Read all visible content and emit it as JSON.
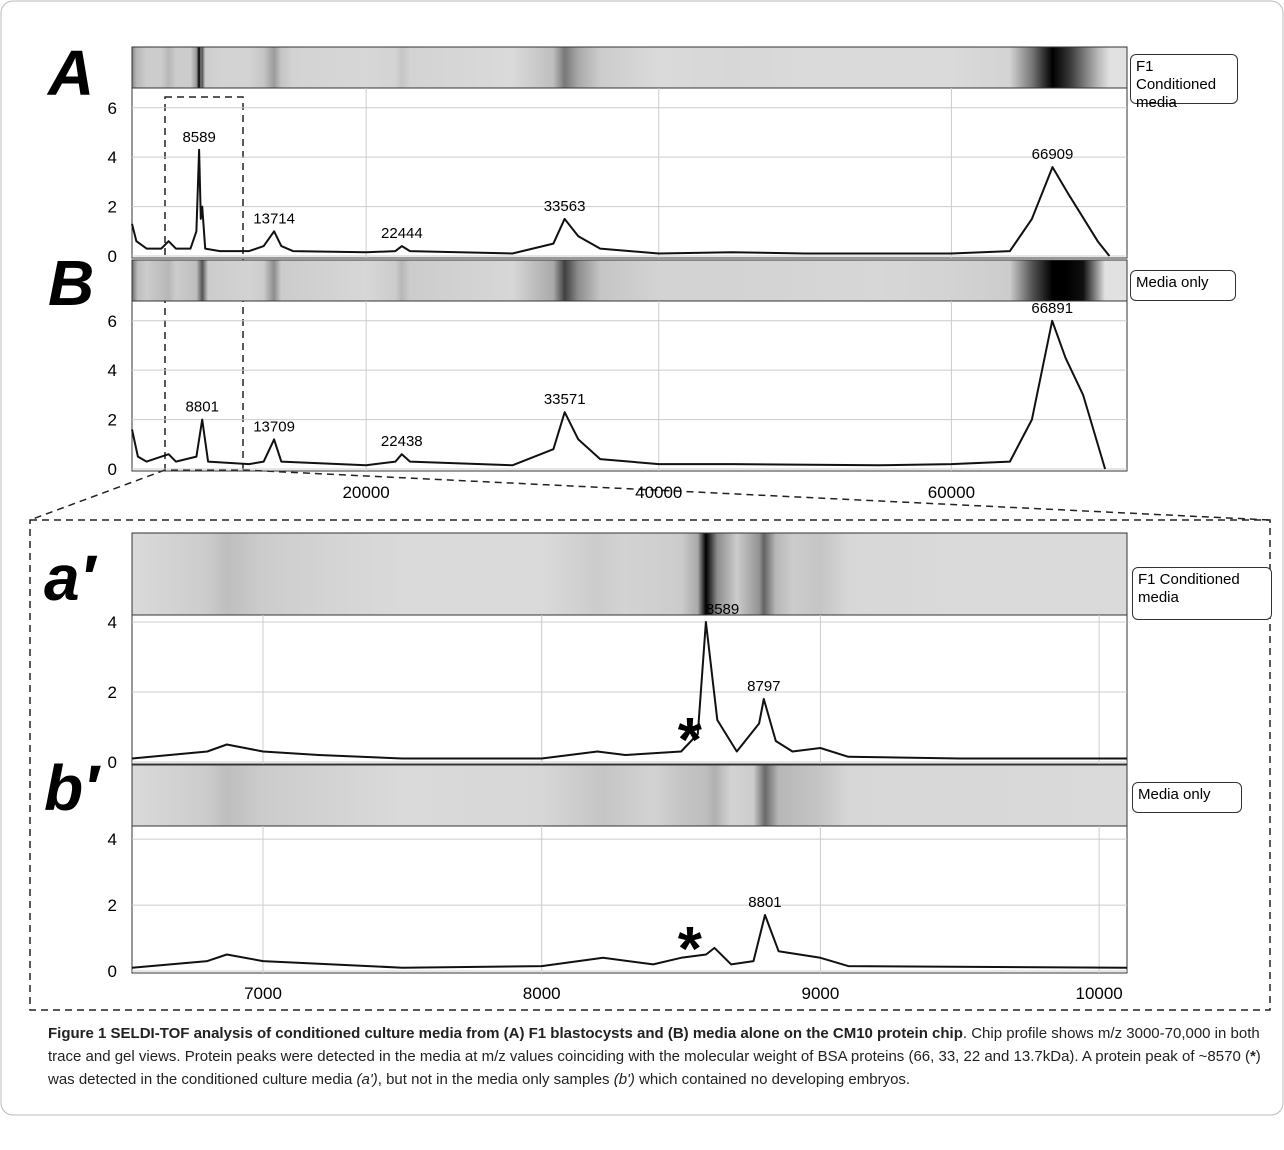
{
  "chart_data": [
    {
      "type": "line",
      "panel": "A",
      "xlim": [
        4000,
        72000
      ],
      "ylim": [
        0,
        6.8
      ],
      "yticks": [
        0,
        2,
        4,
        6
      ],
      "xticks": [
        20000,
        40000,
        60000
      ],
      "show_xtick_labels": false,
      "grid": true,
      "x": [
        4000,
        4300,
        5000,
        6000,
        6500,
        7000,
        8000,
        8400,
        8589,
        8700,
        8800,
        9000,
        10000,
        12000,
        13000,
        13714,
        14200,
        15000,
        20000,
        22000,
        22444,
        23000,
        30000,
        32800,
        33563,
        34500,
        36000,
        40000,
        45000,
        50000,
        60000,
        64000,
        65500,
        66909,
        68000,
        70000,
        70800
      ],
      "series": [
        {
          "name": "F1 Conditioned media",
          "color": "#111111",
          "values": [
            1.3,
            0.6,
            0.3,
            0.3,
            0.6,
            0.3,
            0.3,
            1,
            4.3,
            1.5,
            2,
            0.3,
            0.2,
            0.2,
            0.4,
            1,
            0.4,
            0.2,
            0.15,
            0.2,
            0.4,
            0.2,
            0.1,
            0.5,
            1.5,
            0.8,
            0.3,
            0.1,
            0.15,
            0.1,
            0.1,
            0.2,
            1.5,
            3.6,
            2.5,
            0.6,
            0
          ]
        }
      ],
      "peaks": [
        8589,
        13714,
        22444,
        33563,
        66909
      ]
    },
    {
      "type": "line",
      "panel": "B",
      "xlim": [
        4000,
        72000
      ],
      "ylim": [
        0,
        6.8
      ],
      "yticks": [
        0,
        2,
        4,
        6
      ],
      "xticks": [
        20000,
        40000,
        60000
      ],
      "show_xtick_labels": true,
      "grid": true,
      "x": [
        4000,
        4400,
        5000,
        6500,
        7000,
        8400,
        8801,
        9200,
        12000,
        13000,
        13709,
        14200,
        20000,
        22000,
        22438,
        23000,
        30000,
        32800,
        33571,
        34500,
        36000,
        40000,
        45000,
        55000,
        60000,
        64000,
        65500,
        66891,
        67800,
        69000,
        70500
      ],
      "series": [
        {
          "name": "Media only",
          "color": "#111111",
          "values": [
            1.6,
            0.5,
            0.3,
            0.6,
            0.3,
            0.5,
            2,
            0.3,
            0.2,
            0.3,
            1.2,
            0.3,
            0.15,
            0.3,
            0.6,
            0.3,
            0.15,
            0.8,
            2.3,
            1.2,
            0.4,
            0.2,
            0.2,
            0.15,
            0.2,
            0.3,
            2,
            6,
            4.5,
            3,
            0
          ]
        }
      ],
      "peaks": [
        8801,
        13709,
        22438,
        33571,
        66891
      ]
    },
    {
      "type": "line",
      "panel": "a′",
      "xlim": [
        6530,
        10100
      ],
      "ylim": [
        0,
        4.2
      ],
      "yticks": [
        0,
        2,
        4
      ],
      "xticks": [
        7000,
        8000,
        9000,
        10000
      ],
      "show_xtick_labels": false,
      "grid": true,
      "x": [
        6530,
        6800,
        6870,
        7000,
        7200,
        7500,
        8000,
        8200,
        8300,
        8500,
        8560,
        8589,
        8630,
        8700,
        8780,
        8797,
        8840,
        8900,
        9000,
        9100,
        9500,
        10100
      ],
      "series": [
        {
          "name": "F1 Conditioned media",
          "color": "#111111",
          "values": [
            0.1,
            0.3,
            0.5,
            0.3,
            0.2,
            0.1,
            0.1,
            0.3,
            0.2,
            0.3,
            0.8,
            4,
            1.2,
            0.3,
            1.1,
            1.8,
            0.6,
            0.3,
            0.4,
            0.15,
            0.1,
            0.1
          ]
        }
      ],
      "peaks": [
        8589,
        8797
      ],
      "star": "*"
    },
    {
      "type": "line",
      "panel": "b′",
      "xlim": [
        6530,
        10100
      ],
      "ylim": [
        0,
        4.4
      ],
      "yticks": [
        0,
        2,
        4
      ],
      "xticks": [
        7000,
        8000,
        9000,
        10000
      ],
      "show_xtick_labels": true,
      "grid": true,
      "x": [
        6530,
        6800,
        6870,
        7000,
        7500,
        8000,
        8220,
        8400,
        8500,
        8590,
        8620,
        8680,
        8760,
        8801,
        8850,
        9000,
        9100,
        10100
      ],
      "series": [
        {
          "name": "Media only",
          "color": "#111111",
          "values": [
            0.1,
            0.3,
            0.5,
            0.3,
            0.1,
            0.15,
            0.4,
            0.2,
            0.4,
            0.5,
            0.7,
            0.2,
            0.3,
            1.7,
            0.6,
            0.4,
            0.15,
            0.1
          ]
        }
      ],
      "peaks": [
        8801
      ],
      "star": "*"
    }
  ],
  "caption": {
    "label": "Figure 1",
    "title": "SELDI-TOF analysis of conditioned culture media from (A) F1 blastocysts and (B) media alone on the CM10 protein chip",
    "text1": ". Chip profile shows m/z 3000-70,000 in both trace and gel views. Protein peaks were detected in the media at m/z values coinciding with the molecular weight of BSA proteins (66, 33, 22 and 13.7kDa). A protein peak of ~8570 (",
    "star": "*",
    "text2": ") was detected in the conditioned culture media ",
    "a": "(a')",
    "text3": ", but not in the media only samples ",
    "b": "(b')",
    "text4": " which contained no developing embryos."
  }
}
